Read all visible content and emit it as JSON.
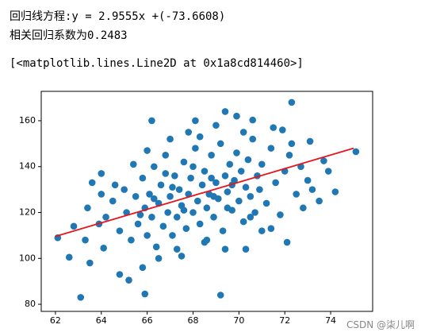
{
  "output": {
    "lines": [
      "回归线方程:y = 2.9555x +(-73.6608)",
      "相关回归系数为0.2483",
      "[<matplotlib.lines.Line2D at 0x1a8cd814460>]"
    ]
  },
  "watermark": "CSDN @柒儿啊",
  "chart_data": {
    "type": "scatter",
    "xlim": [
      61.38,
      75.83
    ],
    "ylim": [
      76.9,
      172.8
    ],
    "xticks": [
      62,
      64,
      66,
      68,
      70,
      72,
      74
    ],
    "yticks": [
      80,
      100,
      120,
      140,
      160
    ],
    "grid": false,
    "series": [
      {
        "type": "scatter",
        "color": "#1f77b4",
        "x": [
          63.1,
          65.9,
          69.2,
          64.8,
          65.2,
          62.6,
          63.5,
          64.1,
          65.8,
          67.5,
          68.5,
          72.3,
          74.2,
          75.1,
          73.7,
          73.1,
          71.9,
          68.1,
          66.2,
          69.9,
          69.4,
          62.1,
          62.8,
          63.4,
          63.6,
          64.0,
          70.6,
          72.8,
          73.2,
          71.4,
          70.3,
          72.1,
          64.2,
          64.5,
          64.8,
          65.0,
          65.1,
          65.3,
          65.5,
          65.6,
          65.8,
          65.9,
          66.0,
          66.1,
          66.2,
          66.3,
          66.4,
          66.5,
          66.6,
          66.7,
          66.8,
          66.9,
          67.0,
          67.1,
          67.2,
          67.3,
          67.4,
          67.5,
          67.6,
          67.7,
          67.8,
          67.9,
          68.0,
          68.1,
          68.2,
          68.3,
          68.4,
          68.5,
          68.6,
          68.7,
          68.8,
          68.9,
          69.0,
          69.1,
          69.2,
          69.3,
          69.4,
          69.5,
          69.6,
          69.7,
          69.8,
          69.9,
          70.0,
          70.1,
          70.2,
          70.3,
          70.4,
          70.5,
          70.6,
          70.7,
          70.8,
          70.9,
          71.0,
          71.2,
          71.4,
          71.6,
          71.8,
          72.0,
          72.2,
          72.5,
          72.7,
          73.0,
          65.4,
          66.0,
          67.0,
          67.8,
          68.6,
          69.4,
          70.2,
          71.0,
          64.6,
          63.9,
          63.3,
          64.0,
          66.5,
          67.3,
          71.5,
          72.3,
          73.5,
          73.9,
          69.0,
          68.3,
          66.8,
          67.6,
          68.9,
          69.7,
          70.5,
          65.7,
          66.3,
          67.1,
          68.0,
          68.8,
          69.5
        ],
        "values": [
          83,
          84.5,
          84,
          93,
          90.5,
          100.5,
          98,
          104.5,
          96,
          101,
          107,
          168,
          129,
          146.5,
          142.5,
          151,
          156,
          160,
          160,
          162,
          164,
          109,
          114,
          122,
          133,
          137,
          160.3,
          122,
          130,
          113,
          104,
          107,
          118,
          125,
          112,
          130,
          120,
          108,
          127,
          115,
          135,
          122,
          110,
          128,
          118,
          140,
          105,
          124,
          132,
          114,
          145,
          120,
          127,
          110,
          136,
          118,
          130,
          123,
          142,
          113,
          128,
          135,
          120,
          148,
          125,
          115,
          132,
          138,
          122,
          128,
          145,
          118,
          133,
          126,
          150,
          112,
          136,
          129,
          141,
          121,
          134,
          146,
          125,
          138,
          116,
          131,
          143,
          127,
          152,
          120,
          136,
          130,
          141,
          124,
          148,
          133,
          119,
          138,
          145,
          128,
          140,
          134,
          141,
          147,
          152,
          155,
          108,
          104,
          155,
          112,
          132,
          115,
          108,
          128,
          100,
          104,
          157,
          150,
          125,
          138,
          158,
          153,
          137,
          121,
          127,
          132,
          118,
          119,
          126,
          131,
          140,
          135,
          122
        ]
      },
      {
        "type": "line",
        "color": "#e8141c",
        "x": [
          62,
          75
        ],
        "values": [
          109.58,
          148.0
        ]
      }
    ]
  }
}
